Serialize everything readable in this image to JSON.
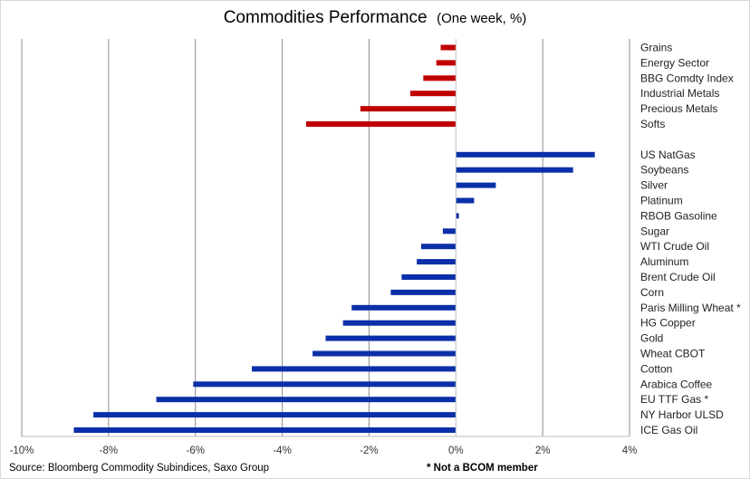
{
  "chart_data": {
    "type": "bar",
    "orientation": "horizontal",
    "title": "Commodities Performance",
    "subtitle": "(One week, %)",
    "xlim": [
      -10,
      4
    ],
    "x_ticks": [
      "-10%",
      "-8%",
      "-6%",
      "-4%",
      "-2%",
      "0%",
      "2%",
      "4%"
    ],
    "x_tick_values": [
      -10,
      -8,
      -6,
      -4,
      -2,
      0,
      2,
      4
    ],
    "grid": "vertical",
    "groups": [
      {
        "color": "#c00000",
        "categories": [
          "Grains",
          "Energy Sector",
          "BBG Comdty Index",
          "Industrial Metals",
          "Precious Metals",
          "Softs"
        ],
        "values": [
          -0.35,
          -0.45,
          -0.75,
          -1.05,
          -2.2,
          -3.45
        ]
      },
      {
        "color": "#0b2fa8",
        "categories": [
          "US NatGas",
          "Soybeans",
          "Silver",
          "Platinum",
          "RBOB Gasoline",
          "Sugar",
          "WTI Crude Oil",
          "Aluminum",
          "Brent Crude Oil",
          "Corn",
          "Paris Milling Wheat *",
          "HG Copper",
          "Gold",
          "Wheat CBOT",
          "Cotton",
          "Arabica Coffee",
          "EU TTF Gas *",
          "NY Harbor ULSD",
          "ICE Gas Oil"
        ],
        "values": [
          3.2,
          2.7,
          0.92,
          0.42,
          0.07,
          -0.3,
          -0.8,
          -0.9,
          -1.25,
          -1.5,
          -2.4,
          -2.6,
          -3.0,
          -3.3,
          -4.7,
          -6.05,
          -6.9,
          -8.35,
          -8.8
        ]
      }
    ]
  },
  "footer": {
    "source": "Source: Bloomberg Commodity Subindices, Saxo Group",
    "note": "* Not a BCOM member"
  }
}
